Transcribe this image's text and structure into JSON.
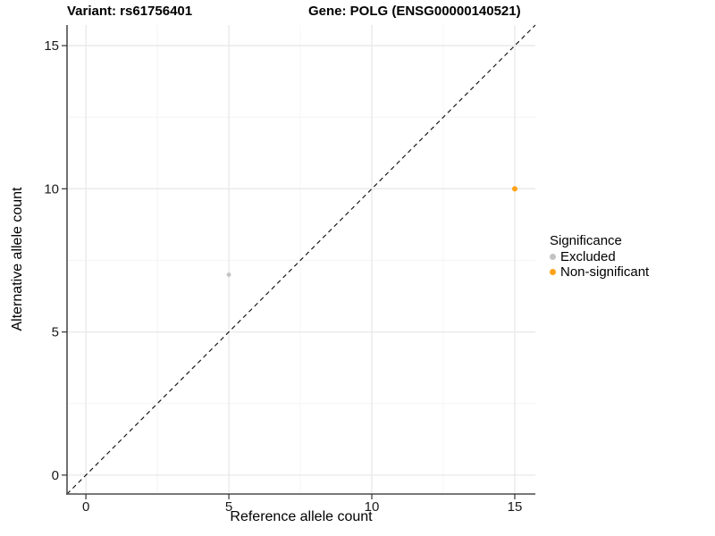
{
  "figure": {
    "title_left": "Variant: rs61756401",
    "title_right": "Gene: POLG (ENSG00000140521)"
  },
  "chart_data": {
    "type": "scatter",
    "title": "Variant: rs61756401   Gene: POLG (ENSG00000140521)",
    "xlabel": "Reference allele count",
    "ylabel": "Alternative allele count",
    "xlim": [
      -0.66,
      15.72
    ],
    "ylim": [
      -0.66,
      15.72
    ],
    "x_ticks": [
      0,
      5,
      10,
      15
    ],
    "y_ticks": [
      0,
      5,
      10,
      15
    ],
    "x_minor_ticks": [
      2.5,
      7.5,
      12.5
    ],
    "y_minor_ticks": [
      2.5,
      7.5,
      12.5
    ],
    "grid": true,
    "series": [
      {
        "name": "Excluded",
        "color": "#c3c3c3",
        "point_radius": 2.4,
        "points": [
          {
            "x": 5,
            "y": 7
          }
        ]
      },
      {
        "name": "Non-significant",
        "color": "#ffa216",
        "point_radius": 3.0,
        "points": [
          {
            "x": 15,
            "y": 10
          }
        ]
      }
    ],
    "reference_line": {
      "type": "identity",
      "style": "dashed",
      "color": "#1a1a1a"
    },
    "legend": {
      "title": "Significance",
      "position": "right-center",
      "entries": [
        {
          "label": "Excluded",
          "color": "#c3c3c3"
        },
        {
          "label": "Non-significant",
          "color": "#ffa216"
        }
      ]
    },
    "colors": {
      "background": "#ffffff",
      "grid_major": "#e8e8e8",
      "grid_minor": "#f4f4f4",
      "axis_line": "#4d4d4d",
      "tick_mark": "#333333",
      "tick_label": "#1a1a1a"
    }
  }
}
